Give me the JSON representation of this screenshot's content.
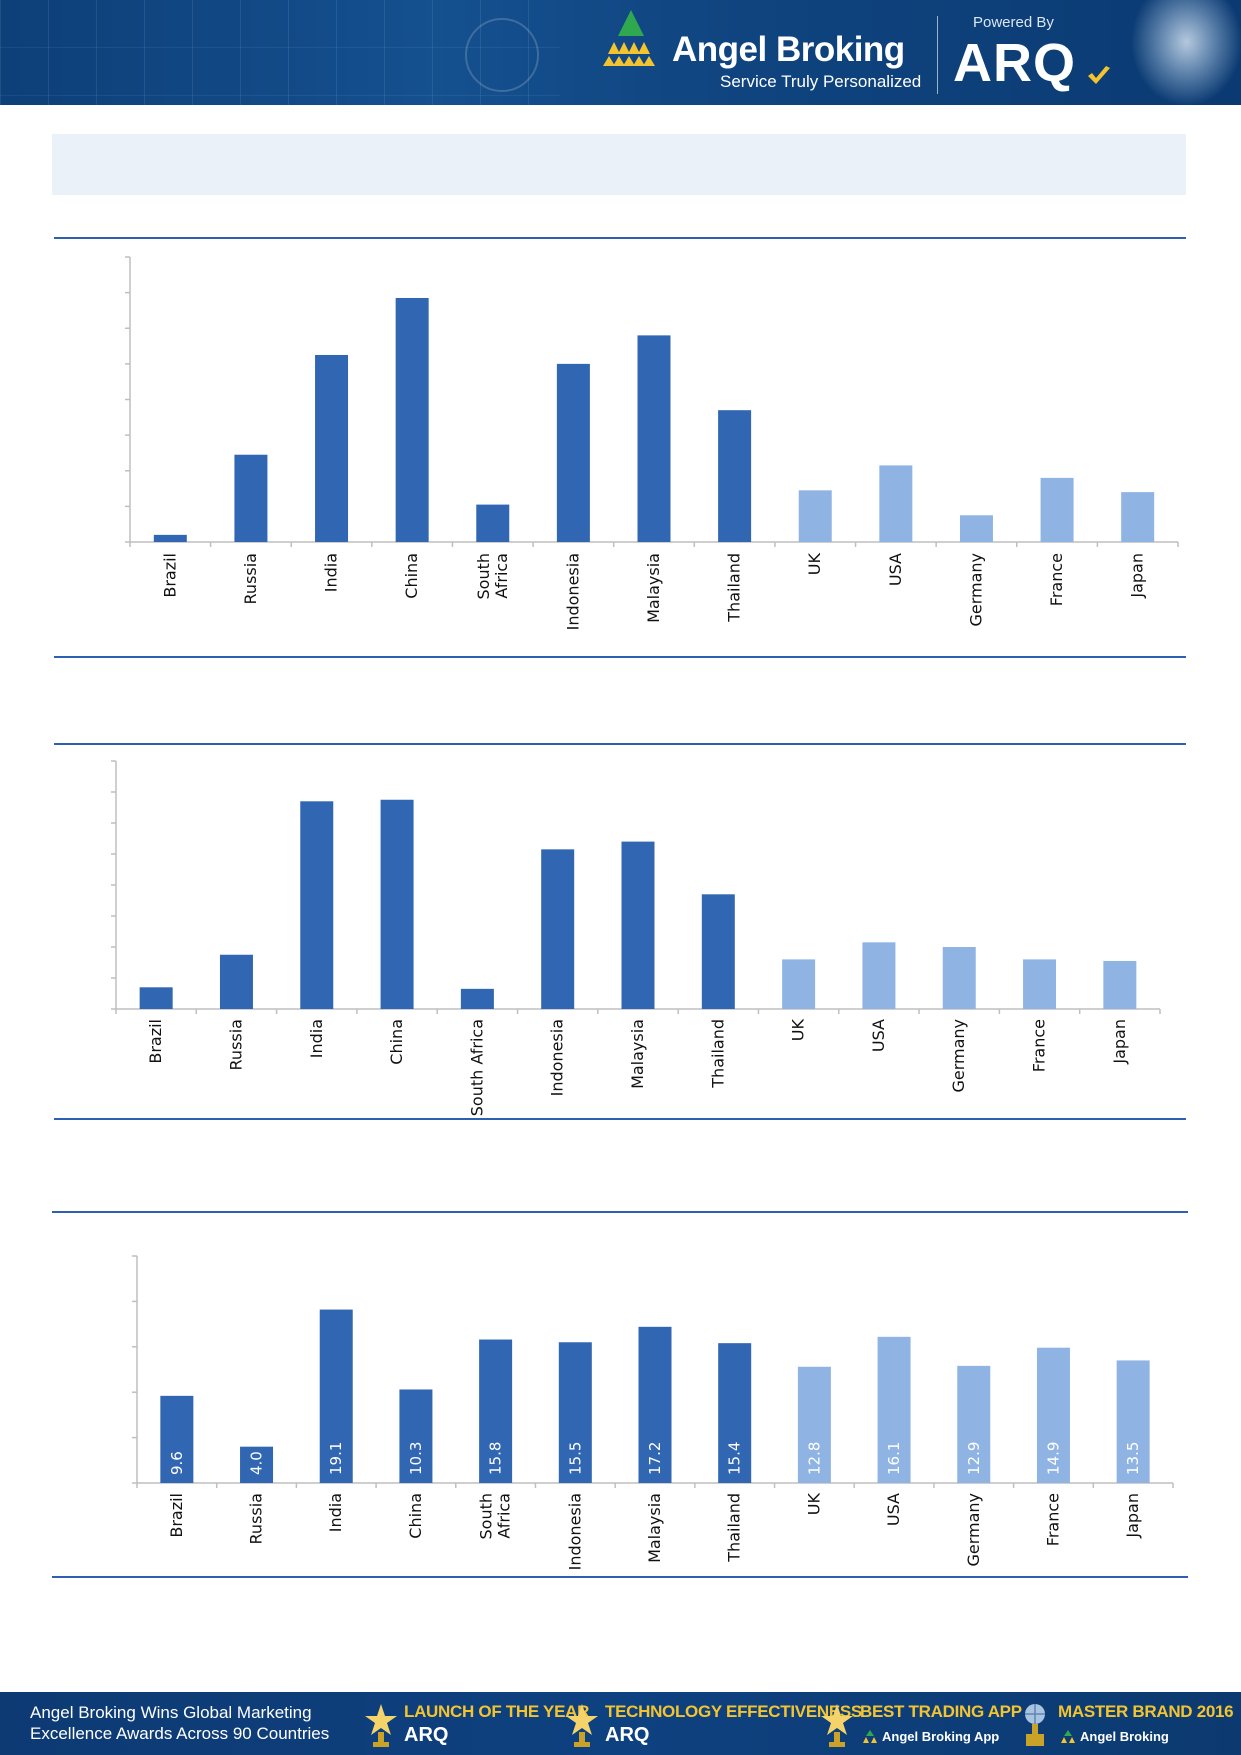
{
  "header": {
    "brand_name": "Angel Broking",
    "brand_tagline": "Service Truly Personalized",
    "powered_by": "Powered By",
    "partner_logo": "ARQ",
    "logo_icon": "triangle-logo-icon",
    "colors": {
      "header_bg": "#0f447f",
      "logo_green": "#2fa84f",
      "logo_yellow": "#f4c430"
    }
  },
  "colors": {
    "em_bar": "#3066b2",
    "dm_bar": "#8fb4e3",
    "rule": "#2e5fb0",
    "banner_bg": "#eaf1f8",
    "axis": "#bfbfbf"
  },
  "chart_data": [
    {
      "type": "bar",
      "categories": [
        "Brazil",
        "Russia",
        "India",
        "China",
        "South Africa",
        "Indonesia",
        "Malaysia",
        "Thailand",
        "UK",
        "USA",
        "Germany",
        "France",
        "Japan"
      ],
      "category_lines": [
        [
          "Brazil"
        ],
        [
          "Russia"
        ],
        [
          "India"
        ],
        [
          "China"
        ],
        [
          "South",
          "Africa"
        ],
        [
          "Indonesia"
        ],
        [
          "Malaysia"
        ],
        [
          "Thailand"
        ],
        [
          "UK"
        ],
        [
          "USA"
        ],
        [
          "Germany"
        ],
        [
          "France"
        ],
        [
          "Japan"
        ]
      ],
      "values": [
        0.2,
        2.45,
        5.25,
        6.85,
        1.05,
        5.0,
        5.8,
        3.7,
        1.45,
        2.15,
        0.75,
        1.8,
        1.4
      ],
      "dm_start_index": 8,
      "ylim": [
        0,
        8
      ],
      "yticks": 8,
      "title": "",
      "xlabel": "",
      "ylabel": "",
      "data_labels": false,
      "grid": false
    },
    {
      "type": "bar",
      "categories": [
        "Brazil",
        "Russia",
        "India",
        "China",
        "South Africa",
        "Indonesia",
        "Malaysia",
        "Thailand",
        "UK",
        "USA",
        "Germany",
        "France",
        "Japan"
      ],
      "category_lines": [
        [
          "Brazil"
        ],
        [
          "Russia"
        ],
        [
          "India"
        ],
        [
          "China"
        ],
        [
          "South Africa"
        ],
        [
          "Indonesia"
        ],
        [
          "Malaysia"
        ],
        [
          "Thailand"
        ],
        [
          "UK"
        ],
        [
          "USA"
        ],
        [
          "Germany"
        ],
        [
          "France"
        ],
        [
          "Japan"
        ]
      ],
      "values": [
        0.7,
        1.75,
        6.7,
        6.75,
        0.65,
        5.15,
        5.4,
        3.7,
        1.6,
        2.15,
        2.0,
        1.6,
        1.55
      ],
      "dm_start_index": 8,
      "ylim": [
        0,
        8
      ],
      "yticks": 8,
      "title": "",
      "xlabel": "",
      "ylabel": "",
      "data_labels": false,
      "grid": false
    },
    {
      "type": "bar",
      "categories": [
        "Brazil",
        "Russia",
        "India",
        "China",
        "South Africa",
        "Indonesia",
        "Malaysia",
        "Thailand",
        "UK",
        "USA",
        "Germany",
        "France",
        "Japan"
      ],
      "category_lines": [
        [
          "Brazil"
        ],
        [
          "Russia"
        ],
        [
          "India"
        ],
        [
          "China"
        ],
        [
          "South",
          "Africa"
        ],
        [
          "Indonesia"
        ],
        [
          "Malaysia"
        ],
        [
          "Thailand"
        ],
        [
          "UK"
        ],
        [
          "USA"
        ],
        [
          "Germany"
        ],
        [
          "France"
        ],
        [
          "Japan"
        ]
      ],
      "values": [
        9.6,
        4.0,
        19.1,
        10.3,
        15.8,
        15.5,
        17.2,
        15.4,
        12.8,
        16.1,
        12.9,
        14.9,
        13.5
      ],
      "value_labels": [
        "9.6",
        "4.0",
        "19.1",
        "10.3",
        "15.8",
        "15.5",
        "17.2",
        "15.4",
        "12.8",
        "16.1",
        "12.9",
        "14.9",
        "13.5"
      ],
      "dm_start_index": 8,
      "ylim": [
        0,
        25
      ],
      "yticks": 5,
      "title": "",
      "xlabel": "",
      "ylabel": "",
      "data_labels": true,
      "grid": false
    }
  ],
  "footer": {
    "text_line1": "Angel Broking Wins Global Marketing",
    "text_line2": "Excellence Awards Across 90 Countries",
    "awards": [
      {
        "title": "LAUNCH OF THE YEAR",
        "sub": "ARQ",
        "icon": "trophy-icon"
      },
      {
        "title": "TECHNOLOGY EFFECTIVENESS",
        "sub": "ARQ",
        "icon": "trophy-icon"
      },
      {
        "title": "BEST TRADING APP",
        "sub": "Angel Broking App",
        "icon": "trophy-icon"
      },
      {
        "title": "MASTER BRAND 2016",
        "sub": "Angel Broking",
        "icon": "globe-trophy-icon"
      }
    ]
  }
}
